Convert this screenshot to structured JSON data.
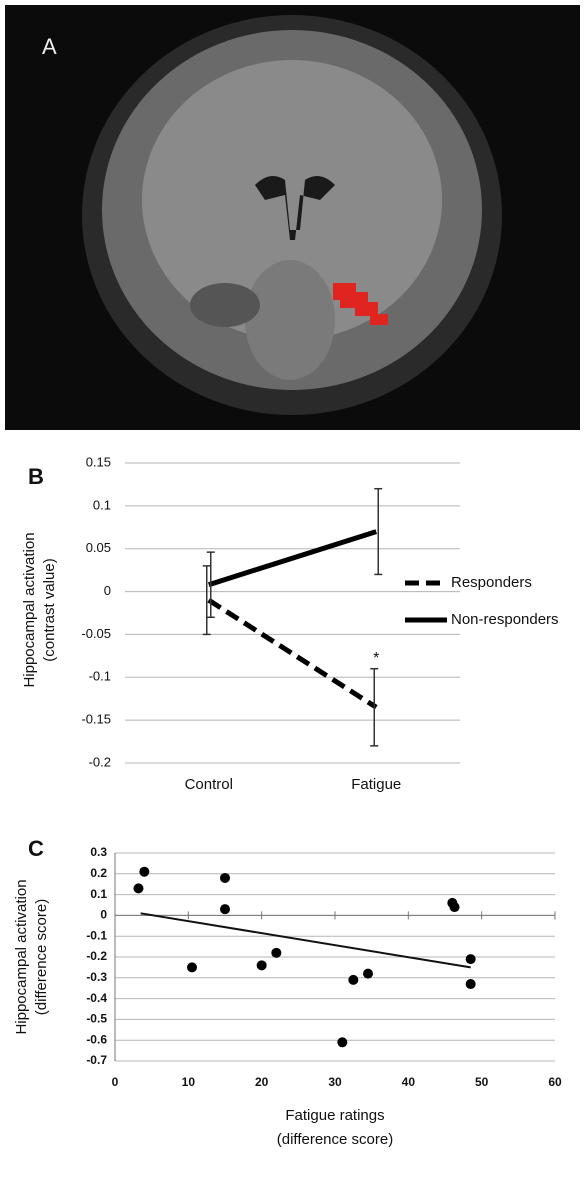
{
  "panel_a": {
    "label": "A"
  },
  "chart_data": [
    {
      "type": "line",
      "panel": "B",
      "y_label": [
        "Hippocampal activation",
        "(contrast value)"
      ],
      "categories": [
        "Control",
        "Fatigue"
      ],
      "series": [
        {
          "name": "Responders",
          "color": "#000000",
          "dashed": true,
          "values": [
            -0.01,
            -0.135
          ],
          "errors": [
            0.04,
            0.045
          ]
        },
        {
          "name": "Non-responders",
          "color": "#000000",
          "dashed": false,
          "values": [
            0.008,
            0.07
          ],
          "errors": [
            0.038,
            0.05
          ]
        }
      ],
      "annotations": [
        "*"
      ],
      "ylim": [
        -0.2,
        0.15
      ],
      "yticks": [
        -0.2,
        -0.15,
        -0.1,
        -0.05,
        0,
        0.05,
        0.1,
        0.15
      ],
      "grid": true
    },
    {
      "type": "scatter",
      "panel": "C",
      "x_label": [
        "Fatigue ratings",
        "(difference score)"
      ],
      "y_label": [
        "Hippocampal activation",
        "(difference score)"
      ],
      "x": [
        3.2,
        4,
        10.5,
        15,
        15,
        20,
        22,
        31,
        32.5,
        34.5,
        46,
        46.3,
        48.5,
        48.5
      ],
      "y": [
        0.13,
        0.21,
        -0.25,
        0.18,
        0.03,
        -0.24,
        -0.18,
        -0.61,
        -0.31,
        -0.28,
        0.06,
        0.04,
        -0.21,
        -0.33
      ],
      "color": "#000000",
      "trendline": {
        "x": [
          3.5,
          48.5
        ],
        "y": [
          0.01,
          -0.25
        ]
      },
      "xlim": [
        0,
        60
      ],
      "xticks": [
        0,
        10,
        20,
        30,
        40,
        50,
        60
      ],
      "ylim": [
        -0.7,
        0.3
      ],
      "yticks": [
        -0.7,
        -0.6,
        -0.5,
        -0.4,
        -0.3,
        -0.2,
        -0.1,
        0,
        0.1,
        0.2,
        0.3
      ],
      "grid": true
    }
  ]
}
